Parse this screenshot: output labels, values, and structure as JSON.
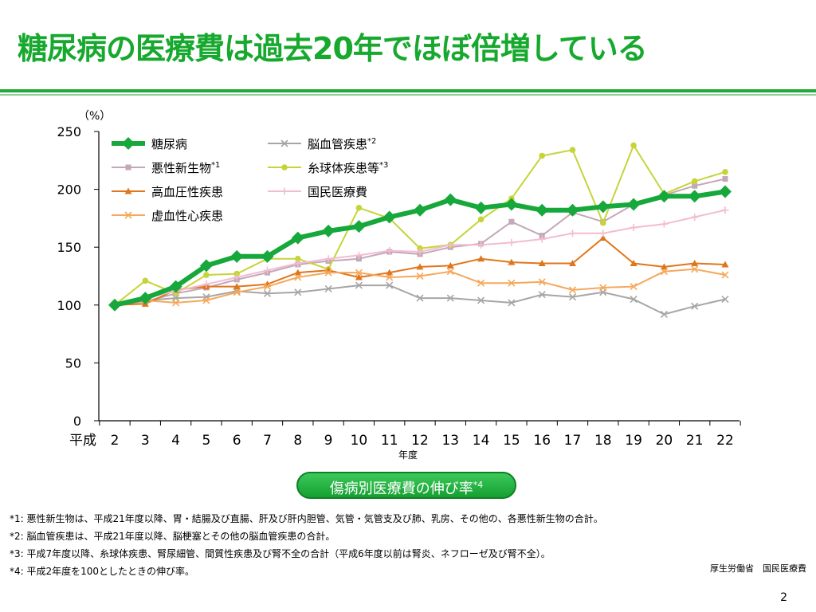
{
  "slide": {
    "title": "糖尿病の医療費は過去20年でほぼ倍増している",
    "pill_label": "傷病別医療費の伸び率",
    "pill_sup": "*4",
    "footnotes": [
      "*1: 悪性新生物は、平成21年度以降、胃・結腸及び直腸、肝及び肝内胆管、気管・気管支及び肺、乳房、その他の、各悪性新生物の合計。",
      "*2: 脳血管疾患は、平成21年度以降、脳梗塞とその他の脳血管疾患の合計。",
      "*3: 平成7年度以降、糸球体疾患、腎尿細管、間質性疾患及び腎不全の合計（平成6年度以前は腎炎、ネフローゼ及び腎不全）。",
      "*4: 平成2年度を100としたときの伸び率。"
    ],
    "source": "厚生労働省　国民医療費",
    "page_number": "2"
  },
  "chart_data": {
    "type": "line",
    "ylabel": "（%）",
    "xlabel": "年度",
    "x_prefix": "平成",
    "x": [
      "2",
      "3",
      "4",
      "5",
      "6",
      "7",
      "8",
      "9",
      "10",
      "11",
      "12",
      "13",
      "14",
      "15",
      "16",
      "17",
      "18",
      "19",
      "20",
      "21",
      "22"
    ],
    "ylim": [
      0,
      250
    ],
    "yticks": [
      0,
      50,
      100,
      150,
      200,
      250
    ],
    "grid": false,
    "legend_position": "top-left",
    "series": [
      {
        "name": "脳血管疾患",
        "sup": "*2",
        "color": "#a6a6a6",
        "marker": "x",
        "width": 2,
        "values": [
          100,
          104,
          106,
          107,
          112,
          110,
          111,
          114,
          117,
          117,
          106,
          106,
          104,
          102,
          109,
          107,
          111,
          105,
          92,
          99,
          105
        ]
      },
      {
        "name": "悪性新生物",
        "sup": "*1",
        "color": "#c3a8b8",
        "marker": "square",
        "width": 2,
        "values": [
          100,
          103,
          110,
          115,
          122,
          128,
          135,
          138,
          140,
          146,
          144,
          150,
          153,
          172,
          160,
          180,
          172,
          187,
          195,
          203,
          209
        ]
      },
      {
        "name": "糸球体疾患等",
        "sup": "*3",
        "color": "#c6d43a",
        "marker": "circle",
        "width": 2,
        "values": [
          100,
          121,
          110,
          126,
          127,
          140,
          140,
          131,
          184,
          175,
          149,
          152,
          174,
          192,
          229,
          234,
          171,
          238,
          196,
          207,
          215
        ]
      },
      {
        "name": "高血圧性疾患",
        "sup": "",
        "color": "#e0761c",
        "marker": "triangle",
        "width": 2,
        "values": [
          100,
          101,
          113,
          116,
          116,
          118,
          128,
          130,
          124,
          128,
          133,
          134,
          140,
          137,
          136,
          136,
          158,
          136,
          133,
          136,
          135
        ]
      },
      {
        "name": "国民医療費",
        "sup": "",
        "color": "#f2bcd2",
        "marker": "plus",
        "width": 2,
        "values": [
          100,
          106,
          112,
          118,
          124,
          130,
          136,
          140,
          143,
          147,
          146,
          152,
          152,
          154,
          157,
          162,
          162,
          167,
          170,
          176,
          182
        ]
      },
      {
        "name": "虚血性心疾患",
        "sup": "",
        "color": "#f5a85c",
        "marker": "x",
        "width": 2,
        "values": [
          100,
          104,
          102,
          104,
          111,
          116,
          124,
          128,
          128,
          124,
          125,
          129,
          119,
          119,
          120,
          113,
          115,
          116,
          129,
          131,
          126
        ]
      },
      {
        "name": "糖尿病",
        "sup": "",
        "color": "#16a83a",
        "marker": "diamond",
        "width": 6,
        "values": [
          100,
          106,
          116,
          134,
          142,
          142,
          158,
          164,
          168,
          176,
          182,
          191,
          184,
          187,
          182,
          182,
          185,
          187,
          194,
          194,
          198
        ]
      }
    ]
  }
}
